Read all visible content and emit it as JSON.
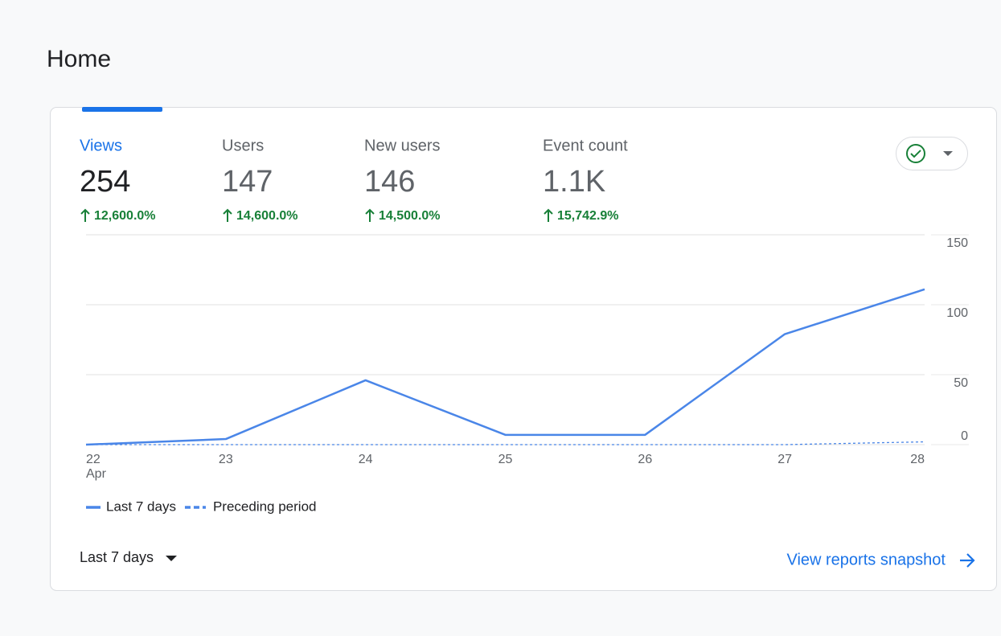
{
  "header": {
    "title": "Home"
  },
  "metrics": [
    {
      "label": "Views",
      "value": "254",
      "change": "12,600.0%"
    },
    {
      "label": "Users",
      "value": "147",
      "change": "14,600.0%"
    },
    {
      "label": "New users",
      "value": "146",
      "change": "14,500.0%"
    },
    {
      "label": "Event count",
      "value": "1.1K",
      "change": "15,742.9%"
    }
  ],
  "chart_data": {
    "type": "line",
    "categories": [
      "22",
      "23",
      "24",
      "25",
      "26",
      "27",
      "28"
    ],
    "month": "Apr",
    "series": [
      {
        "name": "Last 7 days",
        "color": "#4a86e8",
        "style": "solid",
        "values": [
          0,
          4,
          46,
          7,
          7,
          79,
          111
        ]
      },
      {
        "name": "Preceding period",
        "color": "#4a86e8",
        "style": "dashed",
        "values": [
          0,
          0,
          0,
          0,
          0,
          0,
          2
        ]
      }
    ],
    "ylim": [
      0,
      150
    ],
    "yticks": [
      0,
      50,
      100,
      150
    ],
    "grid": true
  },
  "footer": {
    "range": "Last 7 days",
    "link": "View reports snapshot"
  }
}
